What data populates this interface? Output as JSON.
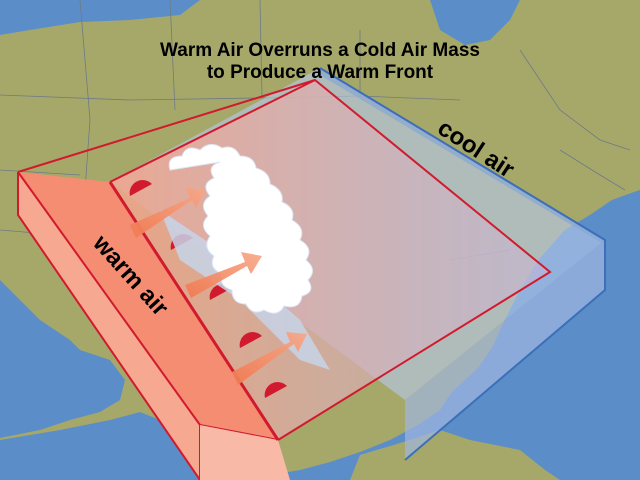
{
  "title": {
    "line1": "Warm Air Overruns a Cold Air Mass",
    "line2": "to Produce a Warm Front"
  },
  "labels": {
    "warm": "warm air",
    "cool": "cool air"
  },
  "colors": {
    "ocean": "#5b8ec8",
    "land": "#a6a86a",
    "warm_air": "#f2765a",
    "cool_air": "#b4c8ea",
    "front_line": "#d11a2e",
    "cloud": "#ffffff",
    "arrow": "#f0855e"
  },
  "icons": [
    "warm-front-symbol",
    "flow-arrow-icon",
    "cloud-band"
  ]
}
